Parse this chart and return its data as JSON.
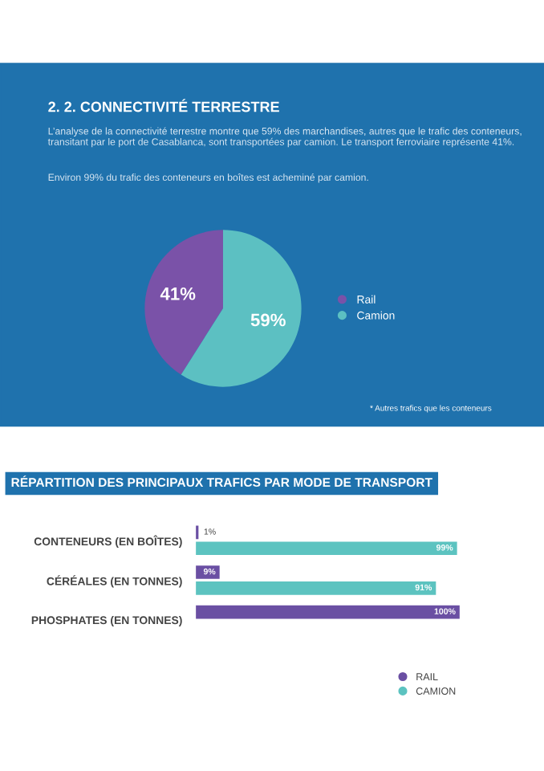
{
  "chart_data": [
    {
      "type": "pie",
      "title": "2. 2. CONNECTIVITÉ TERRESTRE",
      "subtitle": "L’analyse de la connectivité terrestre montre que 59% des marchandises, autres que le trafic des conteneurs, transitant par le port de Casablanca, sont transportées par camion. Le transport ferroviaire représente 41%.",
      "annotations": [
        "Environ 99% du trafic des conteneurs en boîtes est acheminé par camion.",
        "* Autres trafics que les conteneurs"
      ],
      "categories": [
        "Rail",
        "Camion"
      ],
      "values": [
        41,
        59
      ],
      "colors": [
        "#7a52a8",
        "#5cc0c2"
      ],
      "value_labels": [
        "41%",
        "59%"
      ],
      "legend": "right"
    },
    {
      "type": "bar",
      "orientation": "horizontal",
      "title": "RÉPARTITION DES PRINCIPAUX TRAFICS PAR MODE DE TRANSPORT",
      "categories": [
        "CONTENEURS (EN BOÎTES)",
        "CÉRÉALES (EN TONNES)",
        "PHOSPHATES (EN TONNES)"
      ],
      "series": [
        {
          "name": "RAIL",
          "color": "#6a4fa3",
          "values": [
            1,
            9,
            100
          ],
          "value_labels": [
            "1%",
            "9%",
            "100%"
          ]
        },
        {
          "name": "CAMION",
          "color": "#5cc3c0",
          "values": [
            99,
            91,
            0
          ],
          "value_labels": [
            "99%",
            "91%",
            null
          ]
        }
      ],
      "xlim": [
        0,
        100
      ],
      "tick_labels": "y",
      "grid": false,
      "legend": "bottom right"
    }
  ]
}
